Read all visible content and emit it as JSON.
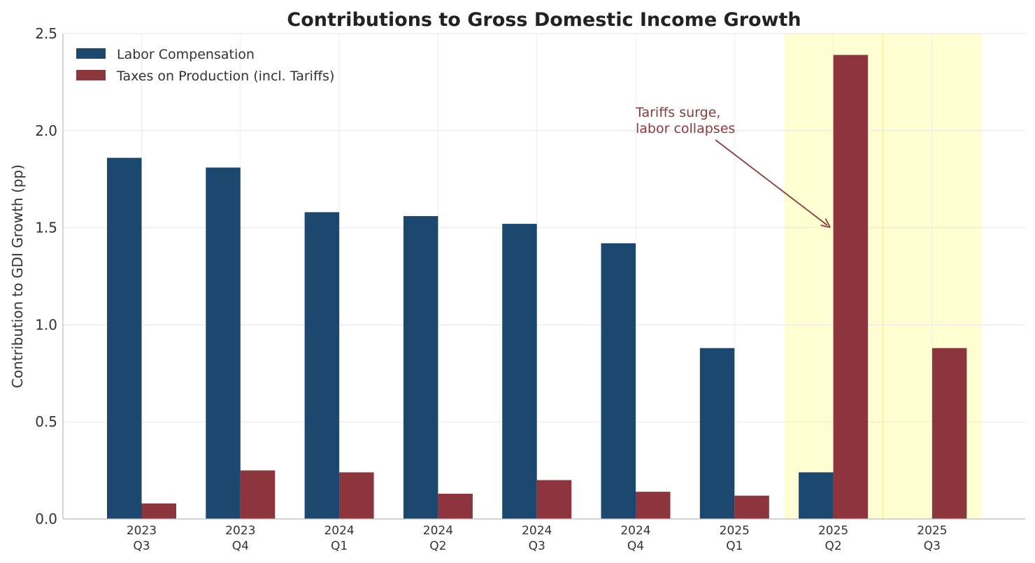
{
  "chart_data": {
    "type": "bar",
    "title": "Contributions to Gross Domestic Income Growth",
    "xlabel": "",
    "ylabel": "Contribution to GDI Growth (pp)",
    "ylim": [
      0,
      2.5
    ],
    "yticks": [
      "0.0",
      "0.5",
      "1.0",
      "1.5",
      "2.0",
      "2.5"
    ],
    "grid": true,
    "legend_position": "top-left",
    "categories": [
      [
        "2023",
        "Q3"
      ],
      [
        "2023",
        "Q4"
      ],
      [
        "2024",
        "Q1"
      ],
      [
        "2024",
        "Q2"
      ],
      [
        "2024",
        "Q3"
      ],
      [
        "2024",
        "Q4"
      ],
      [
        "2025",
        "Q1"
      ],
      [
        "2025",
        "Q2"
      ],
      [
        "2025",
        "Q3"
      ]
    ],
    "series": [
      {
        "name": "Labor Compensation",
        "color": "#1c476e",
        "values": [
          1.86,
          1.81,
          1.58,
          1.56,
          1.52,
          1.42,
          0.88,
          0.24,
          null
        ]
      },
      {
        "name": "Taxes on Production (incl. Tariffs)",
        "color": "#8d353c",
        "values": [
          0.08,
          0.25,
          0.24,
          0.13,
          0.2,
          0.14,
          0.12,
          2.39,
          0.88
        ]
      }
    ],
    "highlighted_categories": [
      7,
      8
    ],
    "highlight_color": "#ffffd2",
    "annotation": {
      "lines": [
        "Tariffs surge,",
        "labor collapses"
      ],
      "color": "#8b3a3e",
      "target": {
        "category": 7,
        "value": 1.51
      }
    }
  }
}
